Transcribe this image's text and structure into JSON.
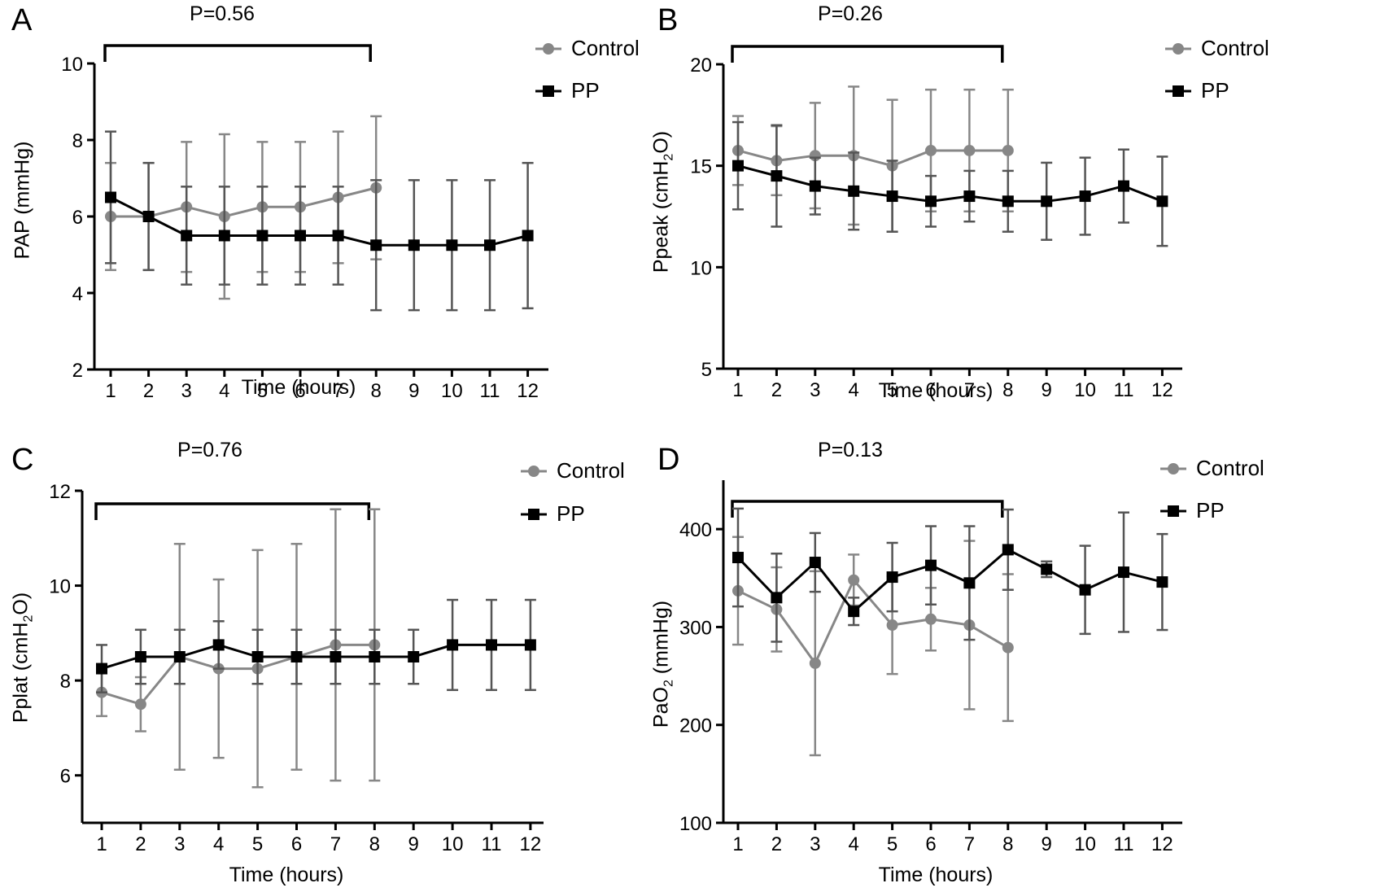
{
  "colors": {
    "control": "#878787",
    "pp": "#000000"
  },
  "legend": {
    "control": "Control",
    "pp": "PP"
  },
  "chart_data": [
    {
      "panel": "A",
      "type": "line",
      "p_value": "P=0.56",
      "xlabel": "Time (hours)",
      "ylabel": "PAP (mmHg)",
      "ylim": [
        2,
        10
      ],
      "yticks": [
        2,
        4,
        6,
        8,
        10
      ],
      "x": [
        1,
        2,
        3,
        4,
        5,
        6,
        7,
        8,
        9,
        10,
        11,
        12
      ],
      "bracket": [
        1,
        8
      ],
      "series": [
        {
          "name": "Control",
          "x": [
            1,
            2,
            3,
            4,
            5,
            6,
            7,
            8
          ],
          "values": [
            6.0,
            6.0,
            6.25,
            6.0,
            6.25,
            6.25,
            6.5,
            6.75
          ],
          "err": [
            1.4,
            1.4,
            1.7,
            2.15,
            1.7,
            1.7,
            1.72,
            1.87
          ]
        },
        {
          "name": "PP",
          "x": [
            1,
            2,
            3,
            4,
            5,
            6,
            7,
            8,
            9,
            10,
            11,
            12
          ],
          "values": [
            6.5,
            6.0,
            5.5,
            5.5,
            5.5,
            5.5,
            5.5,
            5.25,
            5.25,
            5.25,
            5.25,
            5.5
          ],
          "err": [
            1.72,
            1.4,
            1.28,
            1.28,
            1.28,
            1.28,
            1.28,
            1.7,
            1.7,
            1.7,
            1.7,
            1.9
          ]
        }
      ]
    },
    {
      "panel": "B",
      "type": "line",
      "p_value": "P=0.26",
      "xlabel": "Time (hours)",
      "ylabel": "Ppeak (cmH2O)",
      "ylim": [
        5,
        20
      ],
      "yticks": [
        5,
        10,
        15,
        20
      ],
      "x": [
        1,
        2,
        3,
        4,
        5,
        6,
        7,
        8,
        9,
        10,
        11,
        12
      ],
      "bracket": [
        1,
        8
      ],
      "series": [
        {
          "name": "Control",
          "x": [
            1,
            2,
            3,
            4,
            5,
            6,
            7,
            8
          ],
          "values": [
            15.75,
            15.25,
            15.5,
            15.5,
            15.0,
            15.75,
            15.75,
            15.75
          ],
          "err": [
            1.7,
            1.7,
            2.6,
            3.4,
            3.25,
            3.0,
            3.0,
            3.0
          ]
        },
        {
          "name": "PP",
          "x": [
            1,
            2,
            3,
            4,
            5,
            6,
            7,
            8,
            9,
            10,
            11,
            12
          ],
          "values": [
            15.0,
            14.5,
            14.0,
            13.75,
            13.5,
            13.25,
            13.5,
            13.25,
            13.25,
            13.5,
            14.0,
            13.25
          ],
          "err": [
            2.15,
            2.5,
            1.4,
            1.9,
            1.75,
            1.25,
            1.25,
            1.5,
            1.9,
            1.9,
            1.8,
            2.2
          ]
        }
      ]
    },
    {
      "panel": "C",
      "type": "line",
      "p_value": "P=0.76",
      "xlabel": "Time (hours)",
      "ylabel": "Pplat (cmH2O)",
      "ylim": [
        5,
        12
      ],
      "yticks": [
        6,
        8,
        10,
        12
      ],
      "x": [
        1,
        2,
        3,
        4,
        5,
        6,
        7,
        8,
        9,
        10,
        11,
        12
      ],
      "bracket": [
        1,
        8
      ],
      "series": [
        {
          "name": "Control",
          "x": [
            1,
            2,
            3,
            4,
            5,
            6,
            7,
            8
          ],
          "values": [
            7.75,
            7.5,
            8.5,
            8.25,
            8.25,
            8.5,
            8.75,
            8.75
          ],
          "err": [
            0.5,
            0.57,
            2.38,
            1.88,
            2.5,
            2.38,
            2.86,
            2.86
          ]
        },
        {
          "name": "PP",
          "x": [
            1,
            2,
            3,
            4,
            5,
            6,
            7,
            8,
            9,
            10,
            11,
            12
          ],
          "values": [
            8.25,
            8.5,
            8.5,
            8.75,
            8.5,
            8.5,
            8.5,
            8.5,
            8.5,
            8.75,
            8.75,
            8.75
          ],
          "err": [
            0.5,
            0.57,
            0.57,
            0.5,
            0.57,
            0.57,
            0.57,
            0.57,
            0.57,
            0.95,
            0.95,
            0.95
          ]
        }
      ]
    },
    {
      "panel": "D",
      "type": "line",
      "p_value": "P=0.13",
      "xlabel": "Time (hours)",
      "ylabel": "PaO2 (mmHg)",
      "ylim": [
        100,
        450
      ],
      "yticks": [
        100,
        200,
        300,
        400
      ],
      "x": [
        1,
        2,
        3,
        4,
        5,
        6,
        7,
        8,
        9,
        10,
        11,
        12
      ],
      "bracket": [
        1,
        8
      ],
      "series": [
        {
          "name": "Control",
          "x": [
            1,
            2,
            3,
            4,
            5,
            6,
            7,
            8
          ],
          "values": [
            337,
            318,
            263,
            348,
            302,
            308,
            302,
            279
          ],
          "err": [
            55,
            43,
            94,
            26,
            50,
            32,
            86,
            75
          ]
        },
        {
          "name": "PP",
          "x": [
            1,
            2,
            3,
            4,
            5,
            6,
            7,
            8,
            9,
            10,
            11,
            12
          ],
          "values": [
            371,
            330,
            366,
            316,
            351,
            363,
            345,
            379,
            359,
            338,
            356,
            346
          ],
          "err": [
            50,
            45,
            30,
            14,
            35,
            40,
            58,
            41,
            8,
            45,
            61,
            49
          ]
        }
      ]
    }
  ]
}
